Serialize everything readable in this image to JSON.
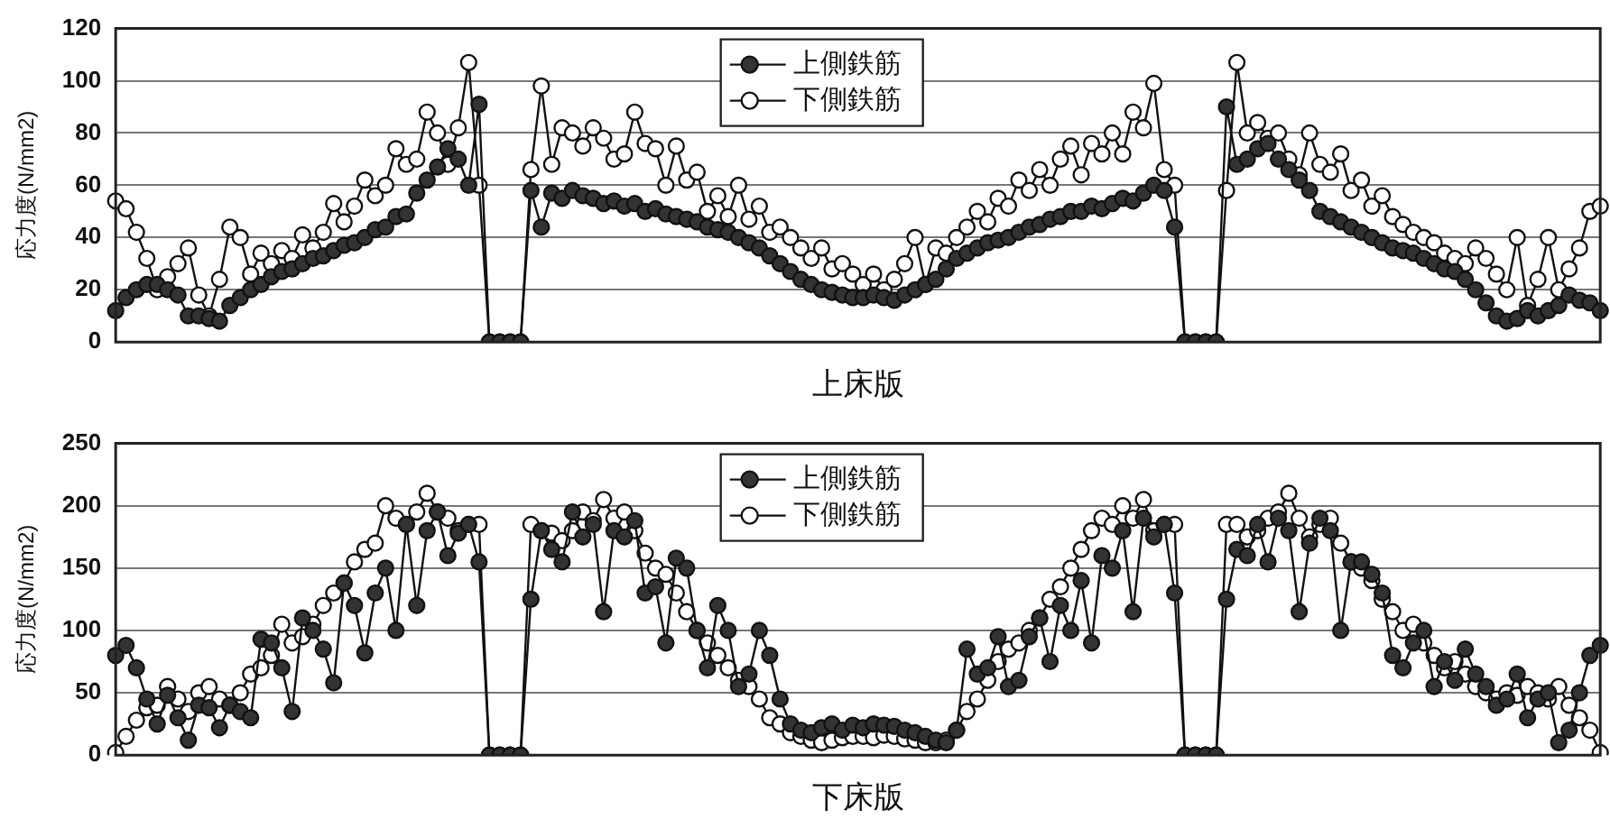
{
  "chart_data": [
    {
      "type": "line",
      "xlabel": "上床版",
      "ylabel": "応力度(N/mm2)",
      "ylim": [
        0,
        120
      ],
      "yticks": [
        0,
        20,
        40,
        60,
        80,
        100,
        120
      ],
      "grid": "y",
      "legend": "top",
      "marker": "circle",
      "line_style": "solid",
      "tick_labels": "y",
      "categories": [
        null,
        null,
        null,
        null,
        null,
        null,
        null,
        null,
        null,
        null,
        null,
        null,
        null,
        null,
        null,
        null,
        null,
        null,
        null,
        null,
        null,
        null,
        null,
        null,
        null,
        null,
        null,
        null,
        null,
        null,
        null,
        null,
        null,
        null,
        null,
        null,
        null,
        null,
        null,
        null,
        null,
        null,
        null,
        null,
        null,
        null,
        null,
        null,
        null,
        null,
        null,
        null,
        null,
        null,
        null,
        null,
        null,
        null,
        null,
        null,
        null,
        null,
        null,
        null,
        null,
        null,
        null,
        null,
        null,
        null,
        null,
        null,
        null,
        null,
        null,
        null,
        null,
        null,
        null,
        null,
        null,
        null,
        null,
        null,
        null,
        null,
        null,
        null,
        null,
        null,
        null,
        null,
        null,
        null,
        null,
        null,
        null,
        null,
        null,
        null,
        null,
        null,
        null,
        null,
        null,
        null,
        null,
        null,
        null,
        null,
        null,
        null,
        null,
        null,
        null,
        null,
        null,
        null,
        null,
        null,
        null,
        null,
        null,
        null,
        null,
        null,
        null,
        null,
        null,
        null,
        null,
        null,
        null,
        null,
        null,
        null,
        null,
        null,
        null,
        null,
        null,
        null,
        null,
        null
      ],
      "series": [
        {
          "name": "上側鉄筋",
          "color": "#333333",
          "values": [
            12,
            17,
            20,
            22,
            22,
            20,
            18,
            10,
            10,
            9,
            8,
            14,
            17,
            20,
            22,
            25,
            27,
            28,
            30,
            32,
            33,
            35,
            37,
            38,
            40,
            43,
            44,
            48,
            49,
            57,
            62,
            67,
            74,
            70,
            60,
            91,
            0,
            0,
            0,
            0,
            58,
            44,
            57,
            55,
            58,
            56,
            55,
            53,
            54,
            52,
            53,
            50,
            51,
            49,
            48,
            47,
            46,
            44,
            43,
            42,
            40,
            38,
            36,
            33,
            30,
            27,
            24,
            22,
            20,
            19,
            18,
            17,
            17,
            18,
            17,
            16,
            18,
            20,
            22,
            24,
            28,
            32,
            34,
            36,
            38,
            39,
            40,
            42,
            44,
            45,
            47,
            48,
            50,
            50,
            52,
            51,
            53,
            55,
            54,
            57,
            60,
            58,
            44,
            0,
            0,
            0,
            0,
            90,
            68,
            70,
            74,
            76,
            70,
            66,
            62,
            58,
            50,
            48,
            46,
            44,
            42,
            40,
            38,
            36,
            35,
            34,
            32,
            30,
            28,
            27,
            24,
            20,
            15,
            10,
            8,
            9,
            12,
            10,
            12,
            14,
            18,
            16,
            15,
            12
          ]
        },
        {
          "name": "下側鉄筋",
          "color": "#ffffff",
          "values": [
            54,
            51,
            42,
            32,
            20,
            25,
            30,
            36,
            18,
            10,
            24,
            44,
            40,
            26,
            34,
            30,
            35,
            32,
            41,
            36,
            42,
            53,
            46,
            52,
            62,
            56,
            60,
            74,
            68,
            70,
            88,
            80,
            68,
            82,
            107,
            60,
            0,
            0,
            0,
            0,
            66,
            98,
            68,
            82,
            80,
            75,
            82,
            78,
            70,
            72,
            88,
            76,
            74,
            60,
            75,
            62,
            65,
            50,
            56,
            48,
            60,
            47,
            52,
            42,
            44,
            40,
            36,
            32,
            36,
            28,
            30,
            26,
            22,
            26,
            20,
            24,
            30,
            40,
            22,
            36,
            34,
            40,
            44,
            50,
            46,
            55,
            52,
            62,
            58,
            66,
            60,
            70,
            75,
            64,
            76,
            72,
            80,
            72,
            88,
            82,
            99,
            66,
            60,
            0,
            0,
            0,
            0,
            58,
            107,
            80,
            84,
            78,
            80,
            70,
            64,
            80,
            68,
            65,
            72,
            58,
            62,
            52,
            56,
            48,
            45,
            42,
            40,
            38,
            34,
            32,
            30,
            36,
            32,
            26,
            20,
            40,
            14,
            24,
            40,
            20,
            28,
            36,
            50,
            52
          ]
        }
      ]
    },
    {
      "type": "line",
      "xlabel": "下床版",
      "ylabel": "応力度(N/mm2)",
      "ylim": [
        0,
        250
      ],
      "yticks": [
        0,
        50,
        100,
        150,
        200,
        250
      ],
      "grid": "y",
      "legend": "top",
      "marker": "circle",
      "line_style": "solid",
      "tick_labels": "y",
      "categories": [
        null,
        null,
        null,
        null,
        null,
        null,
        null,
        null,
        null,
        null,
        null,
        null,
        null,
        null,
        null,
        null,
        null,
        null,
        null,
        null,
        null,
        null,
        null,
        null,
        null,
        null,
        null,
        null,
        null,
        null,
        null,
        null,
        null,
        null,
        null,
        null,
        null,
        null,
        null,
        null,
        null,
        null,
        null,
        null,
        null,
        null,
        null,
        null,
        null,
        null,
        null,
        null,
        null,
        null,
        null,
        null,
        null,
        null,
        null,
        null,
        null,
        null,
        null,
        null,
        null,
        null,
        null,
        null,
        null,
        null,
        null,
        null,
        null,
        null,
        null,
        null,
        null,
        null,
        null,
        null,
        null,
        null,
        null,
        null,
        null,
        null,
        null,
        null,
        null,
        null,
        null,
        null,
        null,
        null,
        null,
        null,
        null,
        null,
        null,
        null,
        null,
        null,
        null,
        null,
        null,
        null,
        null,
        null,
        null,
        null,
        null,
        null,
        null,
        null,
        null,
        null,
        null,
        null,
        null,
        null,
        null,
        null,
        null,
        null,
        null,
        null,
        null,
        null,
        null,
        null,
        null,
        null,
        null,
        null,
        null,
        null,
        null,
        null,
        null,
        null,
        null,
        null,
        null,
        null
      ],
      "series": [
        {
          "name": "上側鉄筋",
          "color": "#333333",
          "values": [
            80,
            88,
            70,
            45,
            25,
            48,
            30,
            12,
            40,
            38,
            22,
            40,
            35,
            30,
            93,
            90,
            70,
            35,
            110,
            100,
            85,
            58,
            138,
            120,
            82,
            130,
            150,
            100,
            185,
            120,
            180,
            195,
            160,
            178,
            185,
            155,
            0,
            0,
            0,
            0,
            125,
            180,
            165,
            155,
            195,
            175,
            185,
            115,
            180,
            175,
            188,
            130,
            135,
            90,
            158,
            150,
            100,
            70,
            120,
            100,
            55,
            65,
            100,
            80,
            45,
            25,
            20,
            18,
            22,
            25,
            20,
            24,
            22,
            25,
            24,
            23,
            20,
            18,
            15,
            12,
            10,
            20,
            85,
            65,
            70,
            95,
            55,
            60,
            95,
            110,
            75,
            120,
            100,
            140,
            90,
            160,
            150,
            180,
            115,
            190,
            175,
            185,
            130,
            0,
            0,
            0,
            0,
            125,
            165,
            160,
            185,
            155,
            190,
            180,
            115,
            170,
            190,
            180,
            100,
            155,
            155,
            145,
            130,
            80,
            70,
            90,
            100,
            55,
            75,
            60,
            85,
            65,
            55,
            40,
            45,
            65,
            30,
            45,
            50,
            10,
            20,
            50,
            80,
            88
          ]
        },
        {
          "name": "下側鉄筋",
          "color": "#ffffff",
          "values": [
            2,
            15,
            28,
            38,
            40,
            55,
            45,
            35,
            50,
            55,
            45,
            40,
            50,
            65,
            70,
            80,
            105,
            90,
            95,
            105,
            120,
            130,
            138,
            155,
            165,
            170,
            200,
            190,
            185,
            195,
            210,
            195,
            190,
            180,
            185,
            185,
            0,
            0,
            0,
            0,
            185,
            180,
            178,
            172,
            180,
            195,
            188,
            205,
            190,
            195,
            180,
            162,
            150,
            145,
            130,
            115,
            100,
            90,
            80,
            70,
            60,
            55,
            45,
            30,
            25,
            18,
            15,
            12,
            10,
            12,
            14,
            15,
            15,
            14,
            16,
            15,
            13,
            12,
            10,
            10,
            12,
            20,
            35,
            45,
            60,
            75,
            85,
            90,
            100,
            110,
            125,
            135,
            150,
            165,
            180,
            190,
            185,
            200,
            190,
            205,
            180,
            185,
            185,
            0,
            0,
            0,
            0,
            185,
            185,
            175,
            180,
            190,
            195,
            210,
            190,
            175,
            185,
            190,
            170,
            155,
            150,
            140,
            125,
            115,
            100,
            105,
            90,
            80,
            70,
            75,
            65,
            55,
            50,
            45,
            50,
            48,
            55,
            50,
            45,
            55,
            40,
            30,
            20,
            2
          ]
        }
      ]
    }
  ]
}
